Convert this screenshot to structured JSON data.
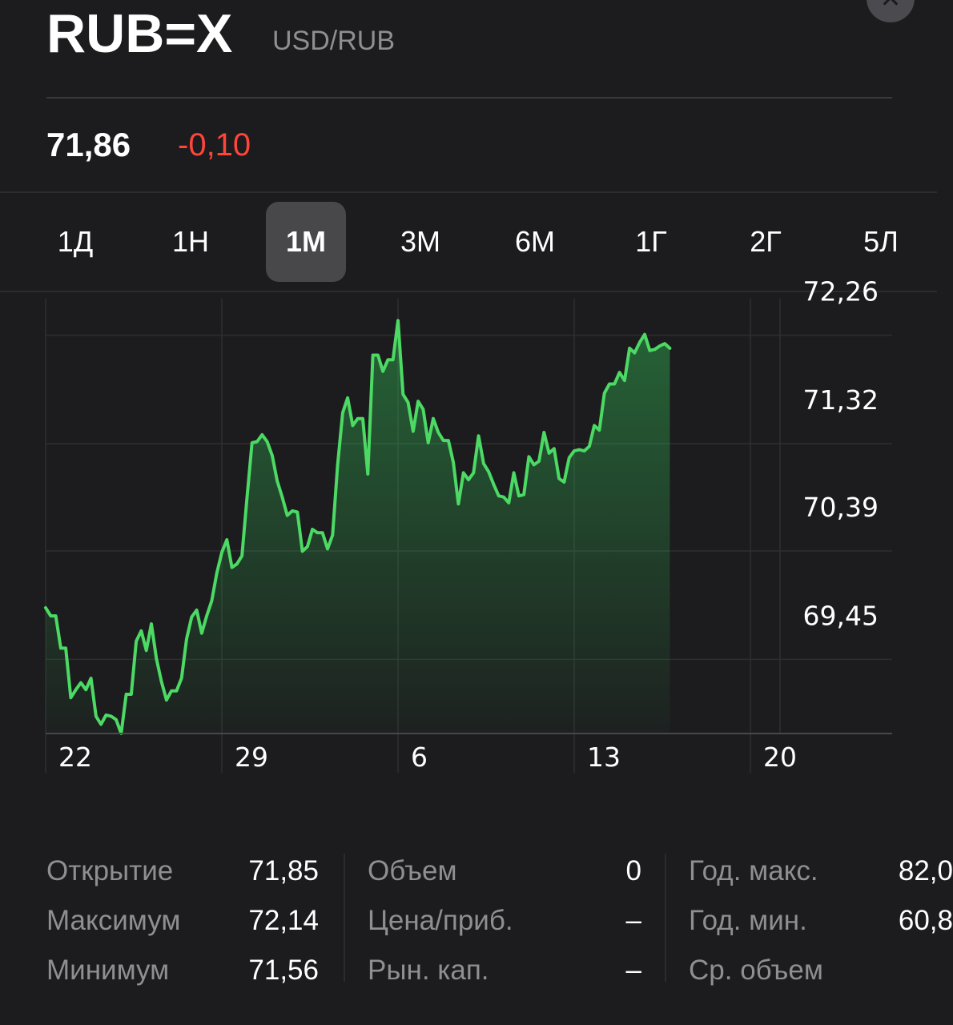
{
  "header": {
    "symbol": "RUB=X",
    "name": "USD/RUB",
    "close_icon": "close-icon"
  },
  "quote": {
    "price": "71,86",
    "change": "-0,10",
    "change_color": "#ff453a"
  },
  "ranges": [
    {
      "label": "1Д"
    },
    {
      "label": "1Н"
    },
    {
      "label": "1М",
      "selected": true
    },
    {
      "label": "3М"
    },
    {
      "label": "6М"
    },
    {
      "label": "1Г"
    },
    {
      "label": "2Г"
    },
    {
      "label": "5Л"
    }
  ],
  "chart_data": {
    "type": "area",
    "line_color": "#4cd964",
    "grid": true,
    "y_ticks": [
      {
        "value": 72.26,
        "label": "72,26"
      },
      {
        "value": 71.32,
        "label": "71,32"
      },
      {
        "value": 70.39,
        "label": "70,39"
      },
      {
        "value": 69.45,
        "label": "69,45"
      }
    ],
    "y_range": [
      68.8,
      72.5
    ],
    "x_ticks": [
      {
        "value": 0,
        "label": "22"
      },
      {
        "value": 7,
        "label": "29"
      },
      {
        "value": 14,
        "label": "6"
      },
      {
        "value": 21,
        "label": "13"
      },
      {
        "value": 28,
        "label": "20"
      }
    ],
    "x_range": [
      0,
      28
    ],
    "series": [
      {
        "values": [
          [
            0.0,
            69.89
          ],
          [
            0.2,
            69.82
          ],
          [
            0.4,
            69.82
          ],
          [
            0.6,
            69.54
          ],
          [
            0.8,
            69.54
          ],
          [
            1.0,
            69.11
          ],
          [
            1.2,
            69.18
          ],
          [
            1.4,
            69.24
          ],
          [
            1.6,
            69.18
          ],
          [
            1.8,
            69.28
          ],
          [
            2.0,
            68.95
          ],
          [
            2.2,
            68.88
          ],
          [
            2.4,
            68.96
          ],
          [
            2.6,
            68.95
          ],
          [
            2.8,
            68.92
          ],
          [
            3.0,
            68.8
          ],
          [
            3.2,
            69.14
          ],
          [
            3.4,
            69.14
          ],
          [
            3.6,
            69.6
          ],
          [
            3.8,
            69.69
          ],
          [
            4.0,
            69.52
          ],
          [
            4.2,
            69.75
          ],
          [
            4.4,
            69.45
          ],
          [
            4.6,
            69.25
          ],
          [
            4.8,
            69.09
          ],
          [
            5.0,
            69.17
          ],
          [
            5.2,
            69.17
          ],
          [
            5.4,
            69.28
          ],
          [
            5.6,
            69.62
          ],
          [
            5.8,
            69.81
          ],
          [
            6.0,
            69.87
          ],
          [
            6.2,
            69.67
          ],
          [
            6.4,
            69.82
          ],
          [
            6.6,
            69.95
          ],
          [
            6.8,
            70.19
          ],
          [
            7.0,
            70.37
          ],
          [
            7.2,
            70.48
          ],
          [
            7.4,
            70.24
          ],
          [
            7.6,
            70.27
          ],
          [
            7.8,
            70.34
          ],
          [
            8.0,
            70.84
          ],
          [
            8.2,
            71.32
          ],
          [
            8.4,
            71.33
          ],
          [
            8.6,
            71.39
          ],
          [
            8.8,
            71.33
          ],
          [
            9.0,
            71.21
          ],
          [
            9.2,
            70.99
          ],
          [
            9.4,
            70.85
          ],
          [
            9.6,
            70.69
          ],
          [
            9.8,
            70.73
          ],
          [
            10.0,
            70.72
          ],
          [
            10.2,
            70.38
          ],
          [
            10.4,
            70.42
          ],
          [
            10.6,
            70.57
          ],
          [
            10.8,
            70.54
          ],
          [
            11.0,
            70.54
          ],
          [
            11.2,
            70.4
          ],
          [
            11.4,
            70.52
          ],
          [
            11.6,
            71.13
          ],
          [
            11.8,
            71.58
          ],
          [
            12.0,
            71.71
          ],
          [
            12.2,
            71.47
          ],
          [
            12.4,
            71.53
          ],
          [
            12.6,
            71.53
          ],
          [
            12.8,
            71.05
          ],
          [
            13.0,
            72.08
          ],
          [
            13.2,
            72.08
          ],
          [
            13.4,
            71.94
          ],
          [
            13.6,
            72.04
          ],
          [
            13.8,
            72.04
          ],
          [
            14.0,
            72.38
          ],
          [
            14.2,
            71.74
          ],
          [
            14.4,
            71.67
          ],
          [
            14.6,
            71.42
          ],
          [
            14.8,
            71.68
          ],
          [
            15.0,
            71.61
          ],
          [
            15.2,
            71.32
          ],
          [
            15.4,
            71.53
          ],
          [
            15.6,
            71.41
          ],
          [
            15.8,
            71.34
          ],
          [
            16.0,
            71.34
          ],
          [
            16.2,
            71.15
          ],
          [
            16.4,
            70.79
          ],
          [
            16.6,
            71.06
          ],
          [
            16.8,
            71.0
          ],
          [
            17.0,
            71.06
          ],
          [
            17.2,
            71.38
          ],
          [
            17.4,
            71.14
          ],
          [
            17.6,
            71.07
          ],
          [
            17.8,
            70.96
          ],
          [
            18.0,
            70.86
          ],
          [
            18.2,
            70.85
          ],
          [
            18.4,
            70.8
          ],
          [
            18.6,
            71.06
          ],
          [
            18.8,
            70.86
          ],
          [
            19.0,
            70.87
          ],
          [
            19.2,
            71.2
          ],
          [
            19.4,
            71.13
          ],
          [
            19.6,
            71.16
          ],
          [
            19.8,
            71.41
          ],
          [
            20.0,
            71.23
          ],
          [
            20.2,
            71.27
          ],
          [
            20.4,
            71.01
          ],
          [
            20.6,
            70.98
          ],
          [
            20.8,
            71.19
          ],
          [
            21.0,
            71.25
          ],
          [
            21.2,
            71.26
          ],
          [
            21.4,
            71.25
          ],
          [
            21.6,
            71.29
          ],
          [
            21.8,
            71.47
          ],
          [
            22.0,
            71.43
          ],
          [
            22.2,
            71.75
          ],
          [
            22.4,
            71.83
          ],
          [
            22.6,
            71.83
          ],
          [
            22.8,
            71.93
          ],
          [
            23.0,
            71.86
          ],
          [
            23.2,
            72.14
          ],
          [
            23.4,
            72.1
          ],
          [
            23.6,
            72.19
          ],
          [
            23.8,
            72.26
          ],
          [
            24.0,
            72.12
          ],
          [
            24.2,
            72.13
          ],
          [
            24.4,
            72.16
          ],
          [
            24.6,
            72.18
          ],
          [
            24.8,
            72.14
          ]
        ]
      }
    ]
  },
  "stats": {
    "col1": [
      {
        "label": "Открытие",
        "value": "71,85"
      },
      {
        "label": "Максимум",
        "value": "72,14"
      },
      {
        "label": "Минимум",
        "value": "71,56"
      }
    ],
    "col2": [
      {
        "label": "Объем",
        "value": "0"
      },
      {
        "label": "Цена/приб.",
        "value": "–"
      },
      {
        "label": "Рын. кап.",
        "value": "–"
      }
    ],
    "col3": [
      {
        "label": "Год. макс.",
        "value": "82,0"
      },
      {
        "label": "Год. мин.",
        "value": "60,8"
      },
      {
        "label": "Ср. объем",
        "value": ""
      }
    ]
  }
}
